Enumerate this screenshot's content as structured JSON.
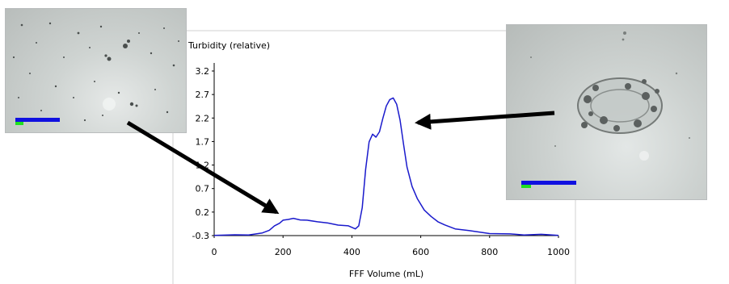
{
  "chart_data": {
    "type": "line",
    "title": "",
    "ylabel": "Turbidity (relative)",
    "xlabel": "FFF Volume (mL)",
    "xlim": [
      0,
      1000
    ],
    "ylim": [
      -0.3,
      3.2
    ],
    "xticks": [
      "0",
      "200",
      "400",
      "600",
      "800",
      "1000"
    ],
    "yticks": [
      "-0.3",
      "0.2",
      "0.7",
      "1.2",
      "1.7",
      "2.2",
      "2.7",
      "3.2"
    ],
    "grid": false,
    "series_color": "#1a1acc",
    "series": [
      {
        "x": [
          0,
          60,
          100,
          140,
          160,
          175,
          190,
          200,
          215,
          230,
          250,
          270,
          300,
          330,
          360,
          390,
          410,
          420,
          430,
          440,
          450,
          460,
          470,
          480,
          490,
          500,
          510,
          520,
          530,
          540,
          550,
          560,
          575,
          590,
          610,
          630,
          650,
          670,
          700,
          740,
          800,
          860,
          900,
          950,
          1000
        ],
        "y": [
          -0.29,
          -0.29,
          -0.28,
          -0.25,
          -0.18,
          -0.1,
          -0.03,
          0.02,
          0.05,
          0.06,
          0.04,
          0.02,
          0.0,
          -0.04,
          -0.07,
          -0.1,
          -0.15,
          -0.1,
          0.3,
          1.1,
          1.7,
          1.85,
          1.8,
          1.9,
          2.2,
          2.45,
          2.6,
          2.62,
          2.5,
          2.15,
          1.65,
          1.15,
          0.75,
          0.48,
          0.25,
          0.1,
          0.0,
          -0.08,
          -0.15,
          -0.2,
          -0.25,
          -0.27,
          -0.28,
          -0.28,
          -0.29
        ]
      }
    ]
  },
  "micrographs": {
    "left": {
      "scale_bar_color": "#1010e0",
      "scale_marker_color": "#20e020"
    },
    "right": {
      "scale_bar_color": "#1010e0",
      "scale_marker_color": "#20e020"
    }
  },
  "arrow_color": "#000000"
}
